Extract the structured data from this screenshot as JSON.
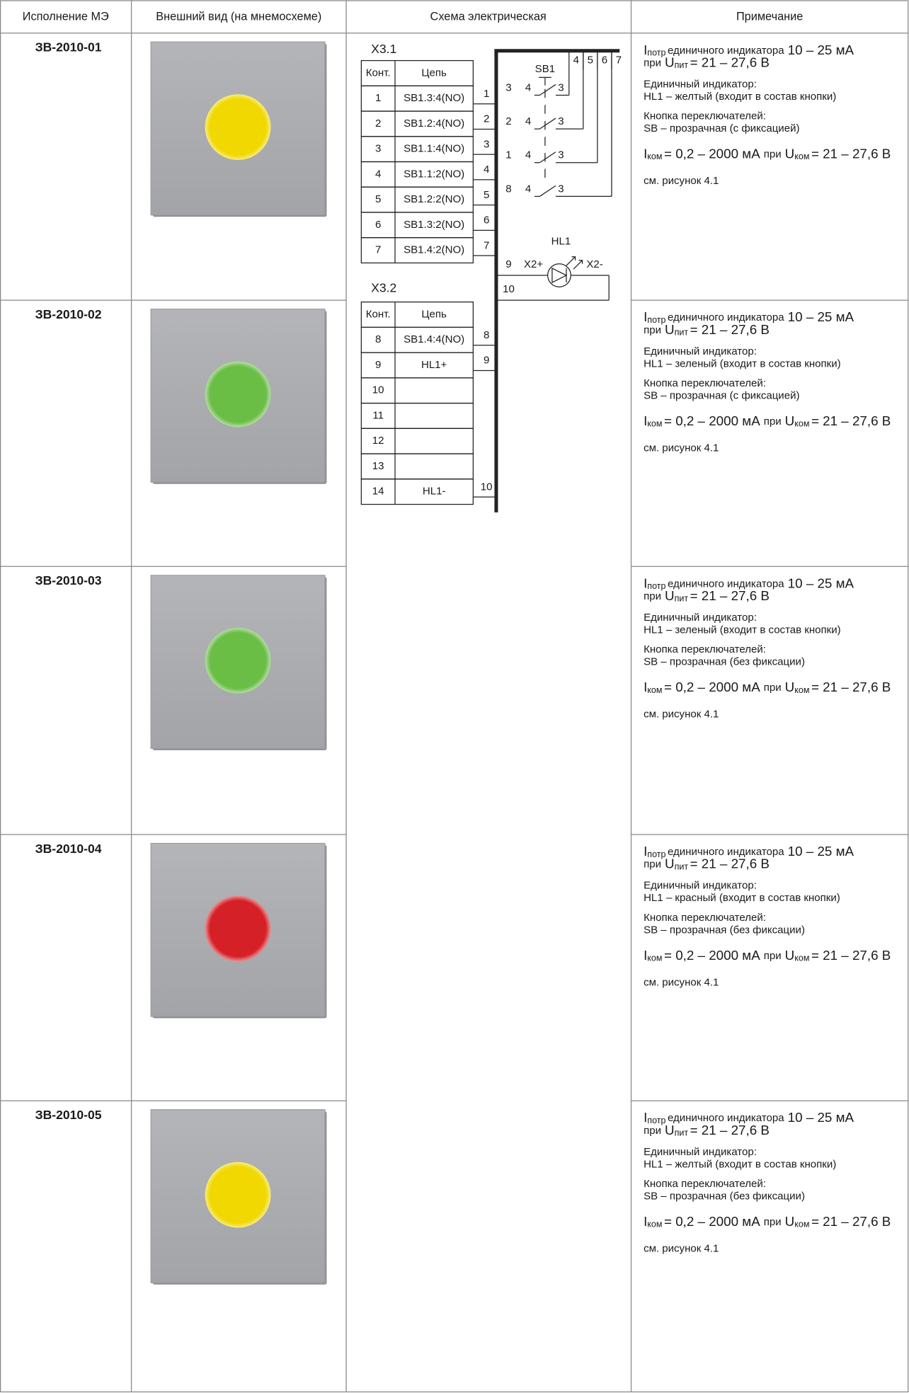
{
  "table": {
    "headers": [
      "Исполнение МЭ",
      "Внешний вид (на мнемосхеме)",
      "Схема электрическая",
      "Примечание"
    ],
    "rows": [
      {
        "code": "ЗВ-2010-01",
        "led_color": "#f0d800",
        "notes": {
          "current": {
            "symbol": "I",
            "sub": "потр",
            "text": "единичного индикатора",
            "value": "10 – 25 мА"
          },
          "voltage": {
            "prefix": "при",
            "symbol": "U",
            "sub": "пит",
            "value": "= 21 – 27,6 В"
          },
          "indicator": [
            "Единичный индикатор:",
            "HL1 – желтый (входит в состав кнопки)"
          ],
          "button": [
            "Кнопка переключателей:",
            "SB – прозрачная (с фиксацией)"
          ],
          "switching": {
            "symbol1": "I",
            "sub1": "ком",
            "value1": "= 0,2 – 2000 мА",
            "mid": "при",
            "symbol2": "U",
            "sub2": "ком",
            "value2": "= 21 – 27,6 В"
          },
          "ref": "см. рисунок 4.1"
        }
      },
      {
        "code": "ЗВ-2010-02",
        "led_color": "#6abd45",
        "notes": {
          "current": {
            "symbol": "I",
            "sub": "потр",
            "text": "единичного индикатора",
            "value": "10 – 25 мА"
          },
          "voltage": {
            "prefix": "при",
            "symbol": "U",
            "sub": "пит",
            "value": "= 21 – 27,6 В"
          },
          "indicator": [
            "Единичный индикатор:",
            "HL1 – зеленый (входит в состав кнопки)"
          ],
          "button": [
            "Кнопка переключателей:",
            "SB – прозрачная (с фиксацией)"
          ],
          "switching": {
            "symbol1": "I",
            "sub1": "ком",
            "value1": "= 0,2 – 2000 мА",
            "mid": "при",
            "symbol2": "U",
            "sub2": "ком",
            "value2": "= 21 – 27,6 В"
          },
          "ref": "см. рисунок 4.1"
        }
      },
      {
        "code": "ЗВ-2010-03",
        "led_color": "#6abd45",
        "notes": {
          "current": {
            "symbol": "I",
            "sub": "потр",
            "text": "единичного индикатора",
            "value": "10 – 25 мА"
          },
          "voltage": {
            "prefix": "при",
            "symbol": "U",
            "sub": "пит",
            "value": "= 21 – 27,6 В"
          },
          "indicator": [
            "Единичный индикатор:",
            "HL1 – зеленый (входит в состав кнопки)"
          ],
          "button": [
            "Кнопка переключателей:",
            "SB – прозрачная (без фиксации)"
          ],
          "switching": {
            "symbol1": "I",
            "sub1": "ком",
            "value1": "= 0,2 – 2000 мА",
            "mid": "при",
            "symbol2": "U",
            "sub2": "ком",
            "value2": "= 21 – 27,6 В"
          },
          "ref": "см. рисунок 4.1"
        }
      },
      {
        "code": "ЗВ-2010-04",
        "led_color": "#d42026",
        "notes": {
          "current": {
            "symbol": "I",
            "sub": "потр",
            "text": "единичного индикатора",
            "value": "10 – 25 мА"
          },
          "voltage": {
            "prefix": "при",
            "symbol": "U",
            "sub": "пит",
            "value": "= 21 – 27,6 В"
          },
          "indicator": [
            "Единичный индикатор:",
            "HL1 – красный (входит в состав кнопки)"
          ],
          "button": [
            "Кнопка переключателей:",
            "SB – прозрачная (без фиксации)"
          ],
          "switching": {
            "symbol1": "I",
            "sub1": "ком",
            "value1": "= 0,2 – 2000 мА",
            "mid": "при",
            "symbol2": "U",
            "sub2": "ком",
            "value2": "= 21 – 27,6 В"
          },
          "ref": "см. рисунок 4.1"
        }
      },
      {
        "code": "ЗВ-2010-05",
        "led_color": "#f0d800",
        "notes": {
          "current": {
            "symbol": "I",
            "sub": "потр",
            "text": "единичного индикатора",
            "value": "10 – 25 мА"
          },
          "voltage": {
            "prefix": "при",
            "symbol": "U",
            "sub": "пит",
            "value": "= 21 – 27,6 В"
          },
          "indicator": [
            "Единичный индикатор:",
            "HL1 – желтый (входит в состав кнопки)"
          ],
          "button": [
            "Кнопка переключателей:",
            "SB – прозрачная (без фиксации)"
          ],
          "switching": {
            "symbol1": "I",
            "sub1": "ком",
            "value1": "= 0,2 – 2000 мА",
            "mid": "при",
            "symbol2": "U",
            "sub2": "ком",
            "value2": "= 21 – 27,6 В"
          },
          "ref": "см. рисунок 4.1"
        }
      }
    ]
  },
  "diagram": {
    "connectors": [
      {
        "title": "X3.1",
        "header": [
          "Конт.",
          "Цепь"
        ],
        "rows": [
          {
            "contact": "1",
            "circuit": "SB1.3:4(NO)",
            "wire": "1"
          },
          {
            "contact": "2",
            "circuit": "SB1.2:4(NO)",
            "wire": "2"
          },
          {
            "contact": "3",
            "circuit": "SB1.1:4(NO)",
            "wire": "3"
          },
          {
            "contact": "4",
            "circuit": "SB1.1:2(NO)",
            "wire": "4"
          },
          {
            "contact": "5",
            "circuit": "SB1.2:2(NO)",
            "wire": "5"
          },
          {
            "contact": "6",
            "circuit": "SB1.3:2(NO)",
            "wire": "6"
          },
          {
            "contact": "7",
            "circuit": "SB1.4:2(NO)",
            "wire": "7"
          }
        ]
      },
      {
        "title": "X3.2",
        "header": [
          "Конт.",
          "Цепь"
        ],
        "rows": [
          {
            "contact": "8",
            "circuit": "SB1.4:4(NO)",
            "wire": "8"
          },
          {
            "contact": "9",
            "circuit": "HL1+",
            "wire": "9"
          },
          {
            "contact": "10"
          },
          {
            "contact": "11"
          },
          {
            "contact": "12"
          },
          {
            "contact": "13"
          },
          {
            "contact": "14",
            "circuit": "HL1-",
            "wire": "10"
          }
        ]
      }
    ],
    "switch": {
      "label": "SB1",
      "top_wires": [
        "4",
        "5",
        "6",
        "7"
      ],
      "contacts": [
        [
          "3",
          "4",
          "3"
        ],
        [
          "2",
          "4",
          "3"
        ],
        [
          "1",
          "4",
          "3"
        ],
        [
          "8",
          "4",
          "3"
        ]
      ]
    },
    "lamp": {
      "label": "HL1",
      "plus": "X2+",
      "minus": "X2-",
      "wire_in": "9",
      "wire_out": "10"
    }
  }
}
